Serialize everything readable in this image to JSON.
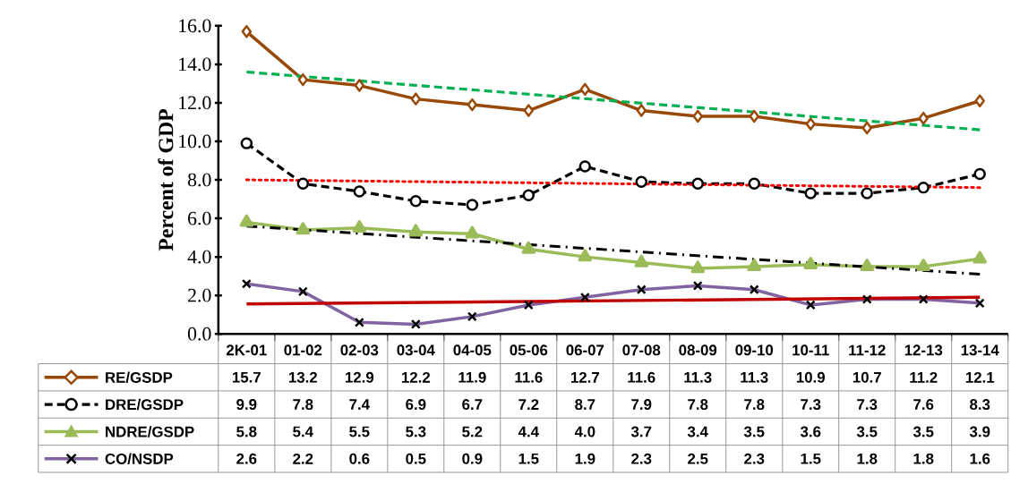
{
  "chart_data": {
    "type": "line",
    "ylabel": "Percent of GDP",
    "categories": [
      "2K-01",
      "01-02",
      "02-03",
      "03-04",
      "04-05",
      "05-06",
      "06-07",
      "07-08",
      "08-09",
      "09-10",
      "10-11",
      "11-12",
      "12-13",
      "13-14"
    ],
    "ylim": [
      0,
      16
    ],
    "yticks": [
      {
        "value": 0,
        "label": "0.0"
      },
      {
        "value": 2,
        "label": "2.0"
      },
      {
        "value": 4,
        "label": "4.0"
      },
      {
        "value": 6,
        "label": "6.0"
      },
      {
        "value": 8,
        "label": "8.0"
      },
      {
        "value": 10,
        "label": "10.0"
      },
      {
        "value": 12,
        "label": "12.0"
      },
      {
        "value": 14,
        "label": "14.0"
      },
      {
        "value": 16,
        "label": "16.0"
      }
    ],
    "series": [
      {
        "name": "RE/GSDP",
        "color": "#984807",
        "marker": "diamond",
        "line_style": "solid",
        "values": [
          15.7,
          13.2,
          12.9,
          12.2,
          11.9,
          11.6,
          12.7,
          11.6,
          11.3,
          11.3,
          10.9,
          10.7,
          11.2,
          12.1
        ],
        "value_labels": [
          "15.7",
          "13.2",
          "12.9",
          "12.2",
          "11.9",
          "11.6",
          "12.7",
          "11.6",
          "11.3",
          "11.3",
          "10.9",
          "10.7",
          "11.2",
          "12.1"
        ]
      },
      {
        "name": "DRE/GSDP",
        "color": "#000000",
        "marker": "circle",
        "line_style": "dashed",
        "values": [
          9.9,
          7.8,
          7.4,
          6.9,
          6.7,
          7.2,
          8.7,
          7.9,
          7.8,
          7.8,
          7.3,
          7.3,
          7.6,
          8.3
        ],
        "value_labels": [
          "9.9",
          "7.8",
          "7.4",
          "6.9",
          "6.7",
          "7.2",
          "8.7",
          "7.9",
          "7.8",
          "7.8",
          "7.3",
          "7.3",
          "7.6",
          "8.3"
        ]
      },
      {
        "name": "NDRE/GSDP",
        "color": "#9bbb59",
        "marker": "triangle",
        "line_style": "solid",
        "values": [
          5.8,
          5.4,
          5.5,
          5.3,
          5.2,
          4.4,
          4.0,
          3.7,
          3.4,
          3.5,
          3.6,
          3.5,
          3.5,
          3.9
        ],
        "value_labels": [
          "5.8",
          "5.4",
          "5.5",
          "5.3",
          "5.2",
          "4.4",
          "4.0",
          "3.7",
          "3.4",
          "3.5",
          "3.6",
          "3.5",
          "3.5",
          "3.9"
        ]
      },
      {
        "name": "CO/NSDP",
        "color": "#8064a2",
        "marker": "cross",
        "line_style": "solid",
        "values": [
          2.6,
          2.2,
          0.6,
          0.5,
          0.9,
          1.5,
          1.9,
          2.3,
          2.5,
          2.3,
          1.5,
          1.8,
          1.8,
          1.6
        ],
        "value_labels": [
          "2.6",
          "2.2",
          "0.6",
          "0.5",
          "0.9",
          "1.5",
          "1.9",
          "2.3",
          "2.5",
          "2.3",
          "1.5",
          "1.8",
          "1.8",
          "1.6"
        ]
      },
      {
        "type": "line",
        "color": "#00b050",
        "marker": "none",
        "line_style": "dashed",
        "x": [
          "2K-01",
          "13-14"
        ],
        "values": [
          13.6,
          10.6
        ]
      },
      {
        "type": "line",
        "color": "#ff0000",
        "marker": "none",
        "line_style": "dotted",
        "x": [
          "2K-01",
          "13-14"
        ],
        "values": [
          8.0,
          7.6
        ]
      },
      {
        "type": "line",
        "color": "#000000",
        "marker": "none",
        "line_style": "dashdot",
        "x": [
          "2K-01",
          "13-14"
        ],
        "values": [
          5.6,
          3.1
        ]
      },
      {
        "type": "line",
        "color": "#c00000",
        "marker": "none",
        "line_style": "solid",
        "x": [
          "2K-01",
          "13-14"
        ],
        "values": [
          1.55,
          1.9
        ]
      }
    ],
    "legend": "bottom",
    "grid": false
  }
}
